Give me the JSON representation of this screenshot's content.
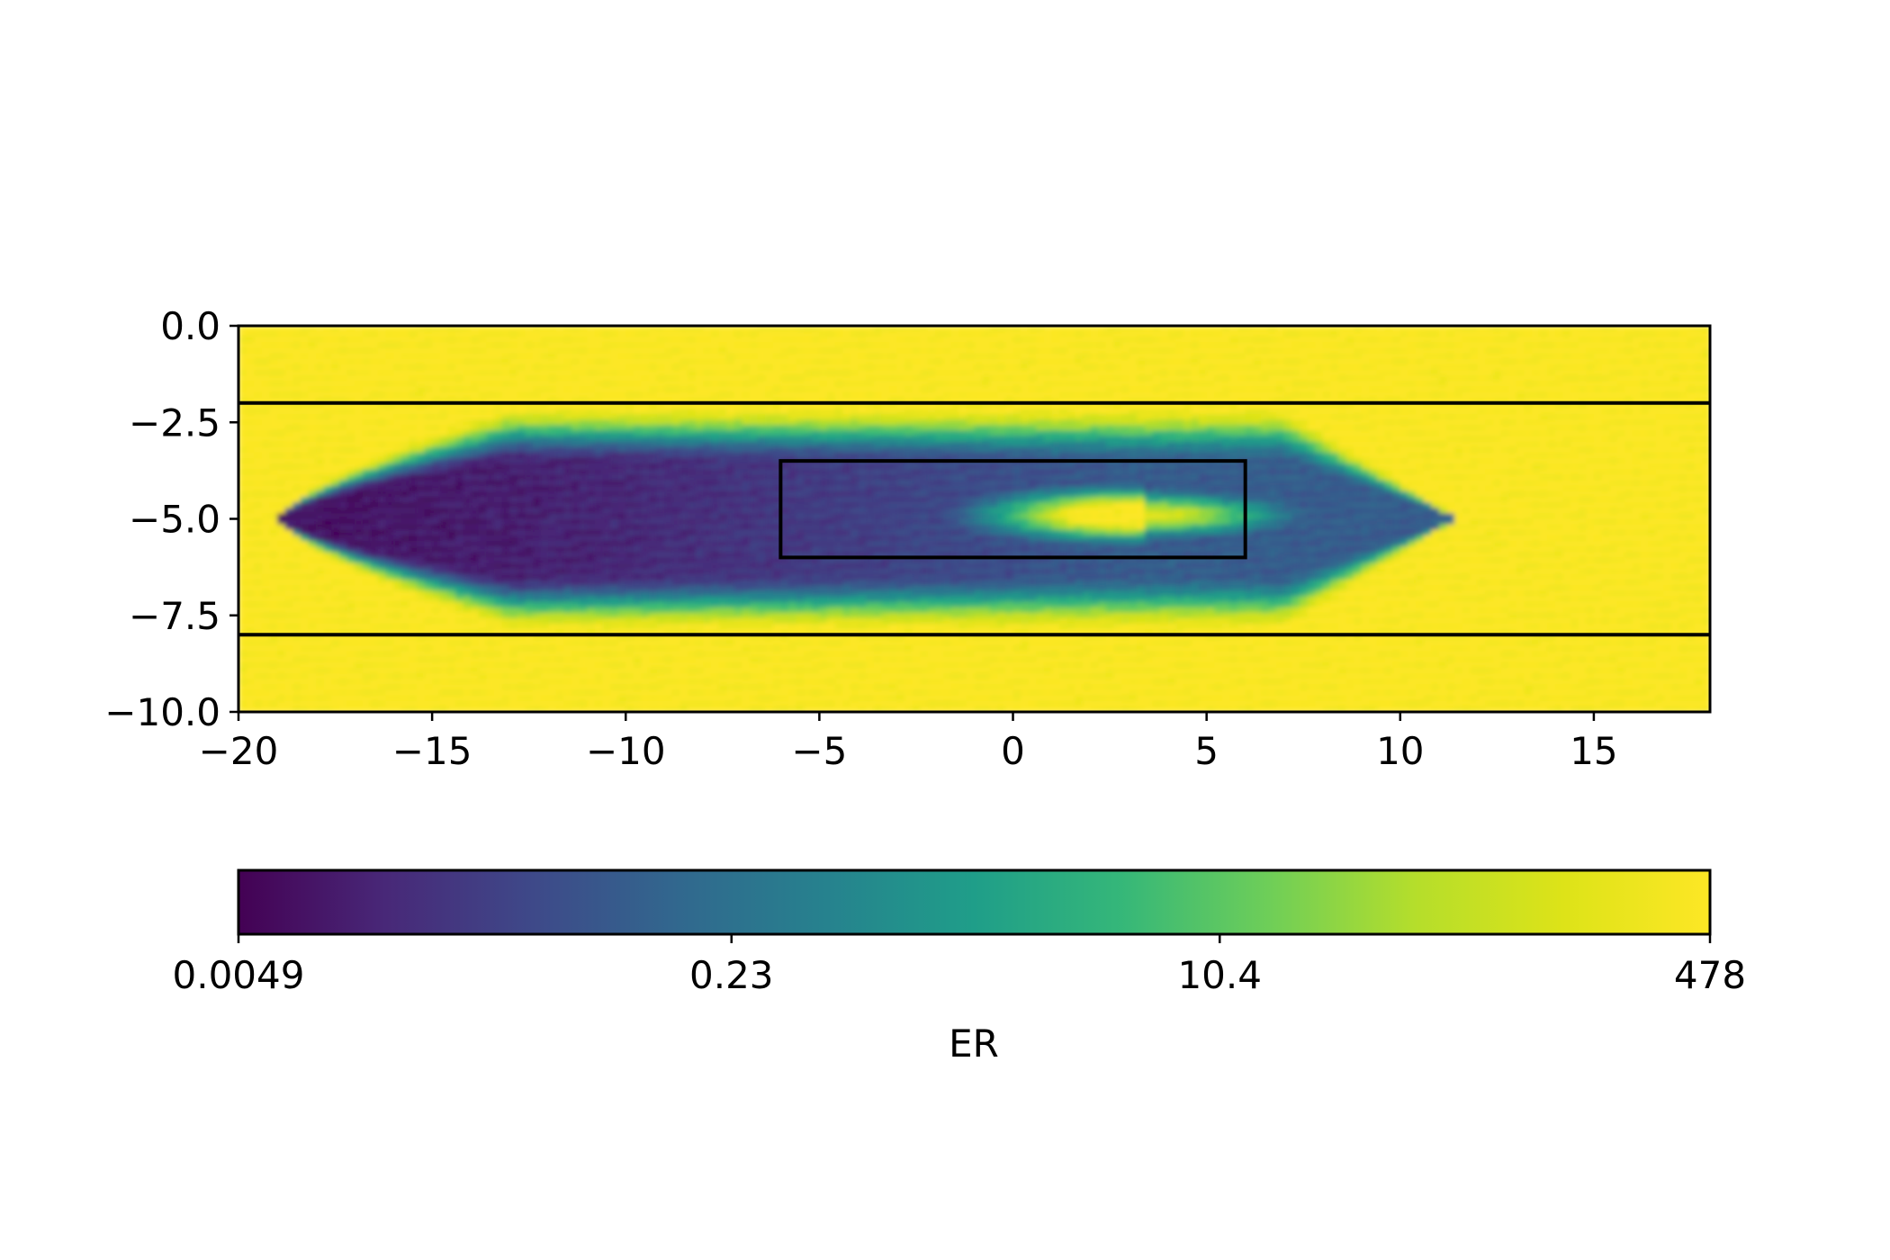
{
  "chart_data": {
    "type": "heatmap",
    "title": "",
    "xlabel": "",
    "ylabel": "",
    "xlim": [
      -20,
      18
    ],
    "ylim": [
      -10,
      0
    ],
    "x_ticks": [
      -20,
      -15,
      -10,
      -5,
      0,
      5,
      10,
      15
    ],
    "y_ticks": [
      0,
      -2.5,
      -5,
      -7.5,
      -10
    ],
    "x_tick_labels": [
      "−20",
      "−15",
      "−10",
      "−5",
      "0",
      "5",
      "10",
      "15"
    ],
    "y_tick_labels": [
      "0.0",
      "−2.5",
      "−5.0",
      "−7.5",
      "−10.0"
    ],
    "colormap": "viridis",
    "colorbar": {
      "label": "ER",
      "scale": "log",
      "range": [
        0.0049,
        478
      ],
      "ticks": [
        0.0049,
        0.23,
        10.4,
        478
      ],
      "tick_labels": [
        "0.0049",
        "0.23",
        "10.4",
        "478"
      ],
      "orientation": "horizontal",
      "placement": "bottom"
    },
    "field": {
      "description_of_values": "log-scale ER field",
      "background_value": 478,
      "low_zone": {
        "x_tip": -19,
        "x_end": 10,
        "y_center": -5,
        "half_width": 2.6,
        "min_value": 0.0049
      },
      "high_core": {
        "x_center": 3.5,
        "y_center": -4.9,
        "x_half_extent": 3.5,
        "y_half_extent": 0.55
      }
    },
    "overlays": {
      "horizontal_lines_y": [
        -2,
        -8
      ],
      "rectangle": {
        "x": [
          -6,
          6
        ],
        "y": [
          -6,
          -3.5
        ]
      }
    }
  }
}
